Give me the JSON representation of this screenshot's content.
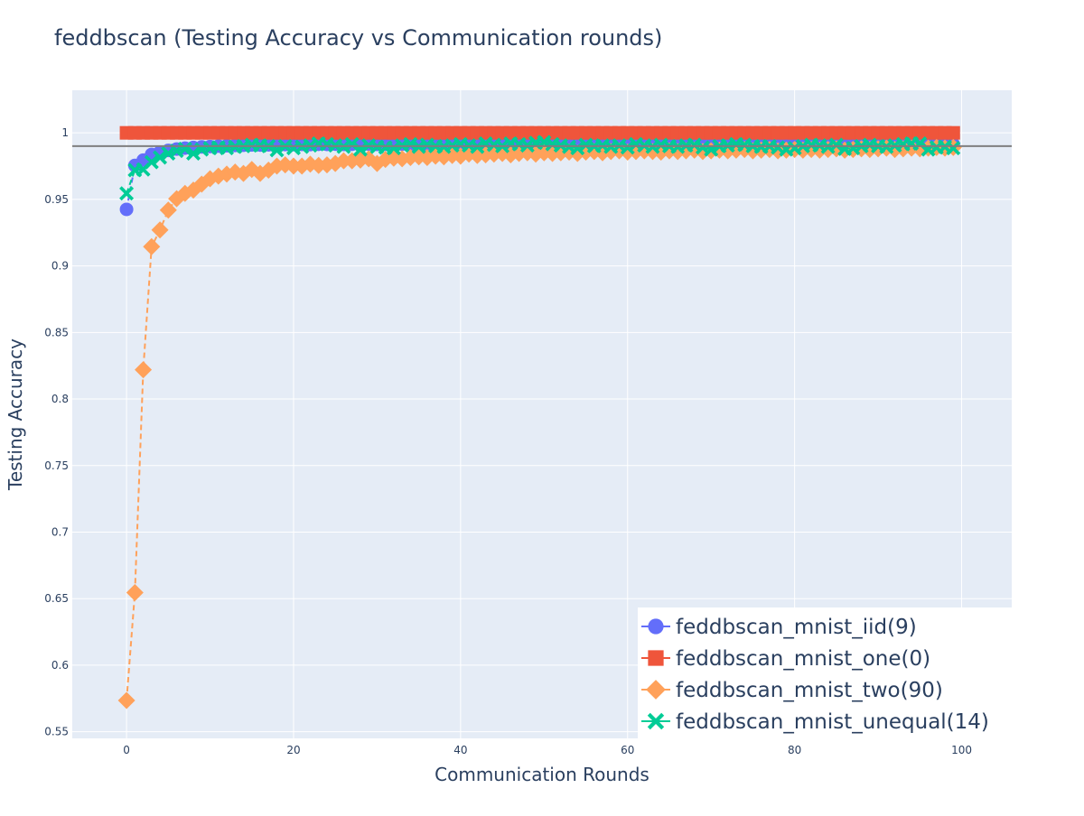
{
  "chart_data": {
    "type": "scatter",
    "title": "feddbscan (Testing Accuracy vs Communication rounds)",
    "xlabel": "Communication Rounds",
    "ylabel": "Testing Accuracy",
    "xlim": [
      -6.5,
      106
    ],
    "ylim": [
      0.545,
      1.032
    ],
    "x_ticks": [
      0,
      20,
      40,
      60,
      80,
      100
    ],
    "y_ticks": [
      0.55,
      0.6,
      0.65,
      0.7,
      0.75,
      0.8,
      0.85,
      0.9,
      0.95,
      1
    ],
    "reference_line_y": 0.99,
    "grid": true,
    "legend_position": "bottom-right",
    "colors": {
      "background": "#e5ecf6",
      "grid": "#ffffff",
      "title": "#2a3f5f",
      "reference_line": "#7f7f7f"
    },
    "series": [
      {
        "name": "feddbscan_mnist_iid(9)",
        "color": "#636efa",
        "marker": "circle",
        "x": [
          0,
          1,
          2,
          3,
          4,
          5,
          6,
          7,
          8,
          9,
          10,
          11,
          12,
          13,
          14,
          15,
          16,
          17,
          18,
          19,
          20,
          21,
          22,
          23,
          24,
          25,
          26,
          27,
          28,
          29,
          30,
          31,
          32,
          33,
          34,
          35,
          36,
          37,
          38,
          39,
          40,
          41,
          42,
          43,
          44,
          45,
          46,
          47,
          48,
          49,
          50,
          51,
          52,
          53,
          54,
          55,
          56,
          57,
          58,
          59,
          60,
          61,
          62,
          63,
          64,
          65,
          66,
          67,
          68,
          69,
          70,
          71,
          72,
          73,
          74,
          75,
          76,
          77,
          78,
          79,
          80,
          81,
          82,
          83,
          84,
          85,
          86,
          87,
          88,
          89,
          90,
          91,
          92,
          93,
          94,
          95,
          96,
          97,
          98,
          99
        ],
        "y": [
          0.9425,
          0.9755,
          0.9795,
          0.9838,
          0.9855,
          0.9868,
          0.9878,
          0.9885,
          0.989,
          0.9894,
          0.9897,
          0.99,
          0.9903,
          0.9905,
          0.9907,
          0.9909,
          0.9908,
          0.991,
          0.991,
          0.9912,
          0.9911,
          0.9913,
          0.9912,
          0.9914,
          0.9913,
          0.9915,
          0.9913,
          0.9914,
          0.9912,
          0.9915,
          0.9913,
          0.9914,
          0.9912,
          0.9915,
          0.9913,
          0.9914,
          0.9912,
          0.9915,
          0.9913,
          0.9914,
          0.9912,
          0.9915,
          0.9913,
          0.9914,
          0.9912,
          0.9915,
          0.9913,
          0.9914,
          0.9912,
          0.9915,
          0.9913,
          0.9914,
          0.9912,
          0.9915,
          0.9913,
          0.9914,
          0.9912,
          0.9915,
          0.9913,
          0.9914,
          0.9912,
          0.9915,
          0.9913,
          0.9914,
          0.9912,
          0.9915,
          0.9913,
          0.9914,
          0.9912,
          0.9915,
          0.9913,
          0.9914,
          0.9912,
          0.9915,
          0.9913,
          0.9914,
          0.9912,
          0.9915,
          0.9913,
          0.9914,
          0.9912,
          0.9915,
          0.9913,
          0.9914,
          0.9912,
          0.9915,
          0.9913,
          0.9914,
          0.9912,
          0.9915,
          0.9913,
          0.9914,
          0.9912,
          0.9915,
          0.9913,
          0.9914,
          0.9912,
          0.9915,
          0.9913,
          0.9914
        ]
      },
      {
        "name": "feddbscan_mnist_one(0)",
        "color": "#ef553b",
        "marker": "square",
        "x": [
          0,
          1,
          2,
          3,
          4,
          5,
          6,
          7,
          8,
          9,
          10,
          11,
          12,
          13,
          14,
          15,
          16,
          17,
          18,
          19,
          20,
          21,
          22,
          23,
          24,
          25,
          26,
          27,
          28,
          29,
          30,
          31,
          32,
          33,
          34,
          35,
          36,
          37,
          38,
          39,
          40,
          41,
          42,
          43,
          44,
          45,
          46,
          47,
          48,
          49,
          50,
          51,
          52,
          53,
          54,
          55,
          56,
          57,
          58,
          59,
          60,
          61,
          62,
          63,
          64,
          65,
          66,
          67,
          68,
          69,
          70,
          71,
          72,
          73,
          74,
          75,
          76,
          77,
          78,
          79,
          80,
          81,
          82,
          83,
          84,
          85,
          86,
          87,
          88,
          89,
          90,
          91,
          92,
          93,
          94,
          95,
          96,
          97,
          98,
          99
        ],
        "y": [
          1,
          1,
          1,
          1,
          1,
          1,
          1,
          1,
          1,
          1,
          1,
          1,
          1,
          1,
          1,
          1,
          1,
          1,
          1,
          1,
          1,
          1,
          1,
          1,
          1,
          1,
          1,
          1,
          1,
          1,
          1,
          1,
          1,
          1,
          1,
          1,
          1,
          1,
          1,
          1,
          1,
          1,
          1,
          1,
          1,
          1,
          1,
          1,
          1,
          1,
          1,
          1,
          1,
          1,
          1,
          1,
          1,
          1,
          1,
          1,
          1,
          1,
          1,
          1,
          1,
          1,
          1,
          1,
          1,
          1,
          1,
          1,
          1,
          1,
          1,
          1,
          1,
          1,
          1,
          1,
          1,
          1,
          1,
          1,
          1,
          1,
          1,
          1,
          1,
          1,
          1,
          1,
          1,
          1,
          1,
          1,
          1,
          1,
          1,
          1
        ]
      },
      {
        "name": "feddbscan_mnist_two(90)",
        "color": "#ffa15a",
        "marker": "diamond",
        "x": [
          0,
          1,
          2,
          3,
          4,
          5,
          6,
          7,
          8,
          9,
          10,
          11,
          12,
          13,
          14,
          15,
          16,
          17,
          18,
          19,
          20,
          21,
          22,
          23,
          24,
          25,
          26,
          27,
          28,
          29,
          30,
          31,
          32,
          33,
          34,
          35,
          36,
          37,
          38,
          39,
          40,
          41,
          42,
          43,
          44,
          45,
          46,
          47,
          48,
          49,
          50,
          51,
          52,
          53,
          54,
          55,
          56,
          57,
          58,
          59,
          60,
          61,
          62,
          63,
          64,
          65,
          66,
          67,
          68,
          69,
          70,
          71,
          72,
          73,
          74,
          75,
          76,
          77,
          78,
          79,
          80,
          81,
          82,
          83,
          84,
          85,
          86,
          87,
          88,
          89,
          90,
          91,
          92,
          93,
          94,
          95,
          96,
          97,
          98,
          99
        ],
        "y": [
          0.5735,
          0.6545,
          0.822,
          0.9145,
          0.927,
          0.942,
          0.9505,
          0.9545,
          0.957,
          0.9615,
          0.9655,
          0.9675,
          0.969,
          0.9705,
          0.9695,
          0.9725,
          0.9695,
          0.972,
          0.975,
          0.976,
          0.975,
          0.975,
          0.9765,
          0.9755,
          0.976,
          0.977,
          0.979,
          0.979,
          0.9795,
          0.9805,
          0.977,
          0.98,
          0.981,
          0.9805,
          0.9815,
          0.982,
          0.9815,
          0.9825,
          0.982,
          0.983,
          0.9825,
          0.984,
          0.983,
          0.9835,
          0.984,
          0.9845,
          0.9835,
          0.9845,
          0.985,
          0.984,
          0.985,
          0.9845,
          0.985,
          0.9855,
          0.9845,
          0.9855,
          0.986,
          0.985,
          0.986,
          0.9865,
          0.9855,
          0.986,
          0.9865,
          0.986,
          0.9855,
          0.9865,
          0.986,
          0.9865,
          0.987,
          0.986,
          0.9865,
          0.987,
          0.9865,
          0.987,
          0.9875,
          0.9865,
          0.987,
          0.9875,
          0.9865,
          0.987,
          0.9875,
          0.987,
          0.9875,
          0.987,
          0.9875,
          0.988,
          0.987,
          0.9875,
          0.988,
          0.9875,
          0.988,
          0.9885,
          0.9875,
          0.988,
          0.9885,
          0.988,
          0.9885,
          0.989,
          0.9885,
          0.989
        ]
      },
      {
        "name": "feddbscan_mnist_unequal(14)",
        "color": "#00cc96",
        "marker": "x",
        "x": [
          0,
          1,
          2,
          3,
          4,
          5,
          6,
          7,
          8,
          9,
          10,
          11,
          12,
          13,
          14,
          15,
          16,
          17,
          18,
          19,
          20,
          21,
          22,
          23,
          24,
          25,
          26,
          27,
          28,
          29,
          30,
          31,
          32,
          33,
          34,
          35,
          36,
          37,
          38,
          39,
          40,
          41,
          42,
          43,
          44,
          45,
          46,
          47,
          48,
          49,
          50,
          51,
          52,
          53,
          54,
          55,
          56,
          57,
          58,
          59,
          60,
          61,
          62,
          63,
          64,
          65,
          66,
          67,
          68,
          69,
          70,
          71,
          72,
          73,
          74,
          75,
          76,
          77,
          78,
          79,
          80,
          81,
          82,
          83,
          84,
          85,
          86,
          87,
          88,
          89,
          90,
          91,
          92,
          93,
          94,
          95,
          96,
          97,
          98,
          99
        ],
        "y": [
          0.9545,
          0.972,
          0.9725,
          0.978,
          0.9815,
          0.9845,
          0.9865,
          0.988,
          0.9845,
          0.9875,
          0.9885,
          0.989,
          0.9885,
          0.9895,
          0.99,
          0.991,
          0.9905,
          0.99,
          0.987,
          0.99,
          0.9885,
          0.9895,
          0.9905,
          0.992,
          0.9915,
          0.9905,
          0.9895,
          0.9915,
          0.9875,
          0.9905,
          0.9895,
          0.989,
          0.9885,
          0.9905,
          0.9915,
          0.9895,
          0.991,
          0.99,
          0.9895,
          0.9905,
          0.9915,
          0.9905,
          0.9895,
          0.992,
          0.991,
          0.99,
          0.992,
          0.9915,
          0.9905,
          0.9925,
          0.993,
          0.9915,
          0.9905,
          0.9895,
          0.9885,
          0.991,
          0.99,
          0.9905,
          0.9895,
          0.9905,
          0.989,
          0.9915,
          0.9905,
          0.9895,
          0.991,
          0.99,
          0.9895,
          0.9905,
          0.991,
          0.989,
          0.9875,
          0.99,
          0.9905,
          0.9915,
          0.991,
          0.99,
          0.9895,
          0.99,
          0.989,
          0.9875,
          0.9885,
          0.99,
          0.991,
          0.9905,
          0.9895,
          0.991,
          0.988,
          0.9885,
          0.99,
          0.991,
          0.99,
          0.9895,
          0.9905,
          0.9915,
          0.992,
          0.992,
          0.9875,
          0.989,
          0.9895,
          0.9885
        ]
      }
    ]
  }
}
